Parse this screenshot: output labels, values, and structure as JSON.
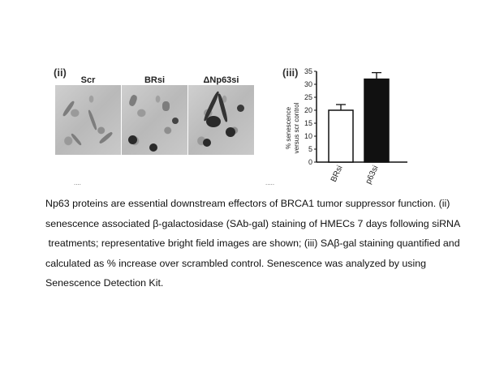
{
  "figure": {
    "panel_ii_label": "(ii)",
    "panel_iii_label": "(iii)",
    "image_labels": [
      "Scr",
      "BRsi",
      "ΔNp63si"
    ],
    "dots_left": "....",
    "dots_right": "....."
  },
  "chart_data": {
    "type": "bar",
    "categories": [
      "BRsi",
      "p63si"
    ],
    "values": [
      20,
      32
    ],
    "errors": [
      2.2,
      2.5
    ],
    "ylabel_line1": "% senescence",
    "ylabel_line2": "versus scr control",
    "ylim": [
      0,
      35
    ],
    "yticks": [
      "0",
      "5",
      "10",
      "15",
      "20",
      "25",
      "30",
      "35"
    ],
    "bar_colors": [
      "#ffffff",
      "#111111"
    ],
    "grid": false
  },
  "caption": {
    "line1": "Np63 proteins are essential downstream effectors of BRCA1 tumor suppressor function. (ii)",
    "line2": "senescence associated β-galactosidase (SAb-gal) staining of HMECs 7 days following siRNA",
    "line3": " treatments; representative bright field images are shown; (iii) SAβ-gal staining quantified and",
    "line4": "calculated as % increase over scrambled control. Senescence was analyzed by using",
    "line5": "Senescence Detection Kit."
  }
}
